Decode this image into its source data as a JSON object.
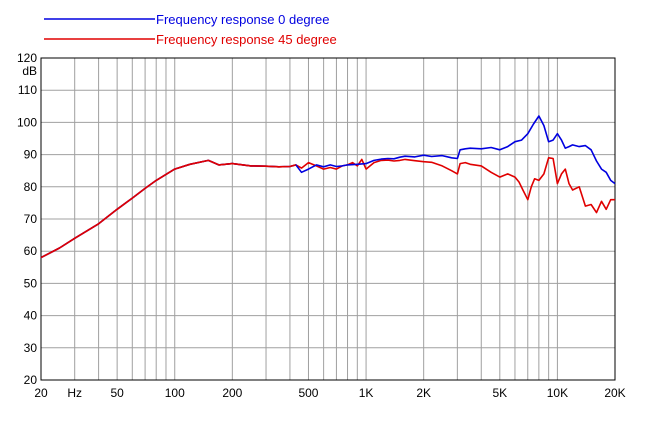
{
  "chart_data": {
    "type": "line",
    "title": "",
    "xlabel": "",
    "ylabel": "dB",
    "x_unit_label": "Hz",
    "x_scale": "log",
    "xlim": [
      20,
      20000
    ],
    "ylim": [
      20,
      120
    ],
    "y_ticks": [
      20,
      30,
      40,
      50,
      60,
      70,
      80,
      90,
      100,
      110,
      120
    ],
    "x_tick_labels": [
      {
        "value": 20,
        "label": "20"
      },
      {
        "value": 50,
        "label": "50"
      },
      {
        "value": 100,
        "label": "100"
      },
      {
        "value": 200,
        "label": "200"
      },
      {
        "value": 500,
        "label": "500"
      },
      {
        "value": 1000,
        "label": "1K"
      },
      {
        "value": 2000,
        "label": "2K"
      },
      {
        "value": 5000,
        "label": "5K"
      },
      {
        "value": 10000,
        "label": "10K"
      },
      {
        "value": 20000,
        "label": "20K"
      }
    ],
    "grid": true,
    "legend_position": "top-left",
    "series": [
      {
        "name": "Frequency response 0 degree",
        "color": "#0000e0",
        "x": [
          20,
          25,
          30,
          40,
          50,
          60,
          70,
          80,
          100,
          120,
          150,
          170,
          200,
          250,
          300,
          350,
          400,
          430,
          460,
          500,
          550,
          600,
          650,
          700,
          750,
          800,
          900,
          1000,
          1100,
          1200,
          1300,
          1400,
          1500,
          1600,
          1800,
          2000,
          2200,
          2500,
          2800,
          3000,
          3100,
          3300,
          3500,
          4000,
          4500,
          5000,
          5500,
          6000,
          6500,
          7000,
          7500,
          8000,
          8500,
          9000,
          9500,
          10000,
          10500,
          11000,
          11500,
          12000,
          13000,
          14000,
          15000,
          16000,
          17000,
          18000,
          19000,
          20000
        ],
        "y": [
          58,
          61,
          64,
          68.5,
          73,
          76.5,
          79.5,
          82,
          85.5,
          87,
          88.2,
          86.8,
          87.2,
          86.5,
          86.4,
          86.2,
          86.3,
          86.8,
          84.5,
          85.5,
          86.8,
          86.2,
          86.8,
          86.3,
          86.5,
          86.8,
          87,
          87.2,
          88.2,
          88.6,
          88.8,
          88.7,
          89.2,
          89.5,
          89.3,
          89.8,
          89.4,
          89.7,
          89,
          88.8,
          91.5,
          91.8,
          92,
          91.8,
          92.2,
          91.5,
          92.5,
          94,
          94.5,
          96.5,
          99.5,
          102,
          99,
          94,
          94.5,
          96.5,
          94.5,
          92,
          92.5,
          93,
          92.5,
          92.8,
          91.5,
          88,
          85.5,
          84.5,
          82,
          81
        ]
      },
      {
        "name": "Frequency response 45 degree",
        "color": "#e00000",
        "x": [
          20,
          25,
          30,
          40,
          50,
          60,
          70,
          80,
          100,
          120,
          150,
          170,
          200,
          250,
          300,
          350,
          400,
          430,
          460,
          500,
          550,
          600,
          650,
          700,
          750,
          800,
          850,
          900,
          950,
          1000,
          1100,
          1200,
          1300,
          1400,
          1500,
          1600,
          1800,
          2000,
          2200,
          2500,
          2800,
          3000,
          3100,
          3300,
          3500,
          4000,
          4500,
          5000,
          5500,
          6000,
          6300,
          6600,
          7000,
          7300,
          7600,
          8000,
          8500,
          9000,
          9500,
          10000,
          10500,
          11000,
          11500,
          12000,
          13000,
          14000,
          15000,
          16000,
          17000,
          18000,
          19000,
          20000
        ],
        "y": [
          58,
          61,
          64,
          68.5,
          73,
          76.5,
          79.5,
          82,
          85.5,
          87,
          88.2,
          86.8,
          87.2,
          86.5,
          86.4,
          86.2,
          86.3,
          86.8,
          85.8,
          87.5,
          86.5,
          85.5,
          86,
          85.5,
          86.5,
          86.8,
          87.5,
          86.5,
          88.5,
          85.5,
          87.5,
          88.2,
          88.3,
          88,
          88.2,
          88.5,
          88.1,
          87.8,
          87.6,
          86.5,
          85,
          84,
          87.2,
          87.5,
          87,
          86.5,
          84.5,
          83,
          84,
          83,
          81.5,
          79,
          76,
          80,
          82.5,
          82,
          84,
          89,
          88.8,
          81,
          84,
          85.5,
          81,
          79,
          80,
          74,
          74.5,
          72,
          75.5,
          73,
          76,
          76
        ]
      }
    ]
  }
}
